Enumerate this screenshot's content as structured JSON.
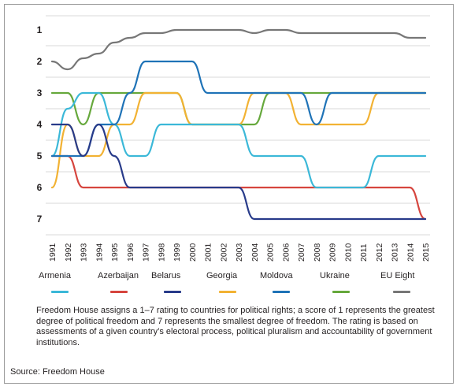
{
  "chart_data": {
    "type": "line",
    "x": [
      1991,
      1992,
      1993,
      1994,
      1995,
      1996,
      1997,
      1998,
      1999,
      2000,
      2001,
      2002,
      2003,
      2004,
      2005,
      2006,
      2007,
      2008,
      2009,
      2010,
      2011,
      2012,
      2013,
      2014,
      2015
    ],
    "x_tick_labels": [
      "1991",
      "1992",
      "1993",
      "1994",
      "1995",
      "1996",
      "1997",
      "1998",
      "1999",
      "2000",
      "2001",
      "2002",
      "2003",
      "2004",
      "2005",
      "2006",
      "2007",
      "2008",
      "2009",
      "2010",
      "2011",
      "2012",
      "2013",
      "2014",
      "2015"
    ],
    "y_ticks": [
      1,
      2,
      3,
      4,
      5,
      6,
      7
    ],
    "y_tick_labels": [
      "1",
      "2",
      "3",
      "4",
      "5",
      "6",
      "7"
    ],
    "ylim": [
      1,
      7
    ],
    "y_inverted": true,
    "grid": true,
    "legend_position": "bottom",
    "series": [
      {
        "name": "Armenia",
        "color": "#3bb8d8",
        "values": [
          5,
          3.5,
          3,
          3,
          4,
          5,
          5,
          4,
          4,
          4,
          4,
          4,
          4,
          5,
          5,
          5,
          5,
          6,
          6,
          6,
          6,
          5,
          5,
          5,
          5
        ]
      },
      {
        "name": "Azerbaijan",
        "color": "#d6453e",
        "values": [
          5,
          5,
          6,
          6,
          6,
          6,
          6,
          6,
          6,
          6,
          6,
          6,
          6,
          6,
          6,
          6,
          6,
          6,
          6,
          6,
          6,
          6,
          6,
          6,
          7
        ]
      },
      {
        "name": "Belarus",
        "color": "#283b8a",
        "values": [
          4,
          4,
          5,
          4,
          5,
          6,
          6,
          6,
          6,
          6,
          6,
          6,
          6,
          7,
          7,
          7,
          7,
          7,
          7,
          7,
          7,
          7,
          7,
          7,
          7
        ]
      },
      {
        "name": "Georgia",
        "color": "#f2b233",
        "values": [
          6,
          4,
          5,
          5,
          4,
          4,
          3,
          3,
          3,
          4,
          4,
          4,
          4,
          3,
          3,
          3,
          4,
          4,
          4,
          4,
          4,
          3,
          3,
          3,
          3
        ]
      },
      {
        "name": "Moldova",
        "color": "#1f73b7",
        "values": [
          5,
          5,
          5,
          4,
          4,
          3,
          2,
          2,
          2,
          2,
          3,
          3,
          3,
          3,
          3,
          3,
          3,
          4,
          3,
          3,
          3,
          3,
          3,
          3,
          3
        ]
      },
      {
        "name": "Ukraine",
        "color": "#66a83c",
        "values": [
          3,
          3,
          4,
          3,
          3,
          3,
          3,
          3,
          3,
          4,
          4,
          4,
          4,
          4,
          3,
          3,
          3,
          3,
          3,
          3,
          3,
          3,
          3,
          3,
          3
        ]
      },
      {
        "name": "EU Eight",
        "color": "#777777",
        "values": [
          2,
          2.25,
          1.9,
          1.75,
          1.4,
          1.25,
          1.1,
          1.1,
          1,
          1,
          1,
          1,
          1,
          1.1,
          1,
          1,
          1.1,
          1.1,
          1.1,
          1.1,
          1.1,
          1.1,
          1.1,
          1.25,
          1.25
        ]
      }
    ]
  },
  "legend": [
    {
      "label": "Armenia",
      "color": "#3bb8d8"
    },
    {
      "label": "Azerbaijan",
      "color": "#d6453e"
    },
    {
      "label": "Belarus",
      "color": "#283b8a"
    },
    {
      "label": "Georgia",
      "color": "#f2b233"
    },
    {
      "label": "Moldova",
      "color": "#1f73b7"
    },
    {
      "label": "Ukraine",
      "color": "#66a83c"
    },
    {
      "label": "EU Eight",
      "color": "#777777"
    }
  ],
  "note": "Freedom House assigns a 1–7 rating to countries for political rights; a score of 1 represents the greatest degree of political freedom and 7 represents the smallest degree of freedom. The rating is based on assessments of a given country’s electoral process, political pluralism and accountability of government institutions.",
  "source": "Source: Freedom House"
}
